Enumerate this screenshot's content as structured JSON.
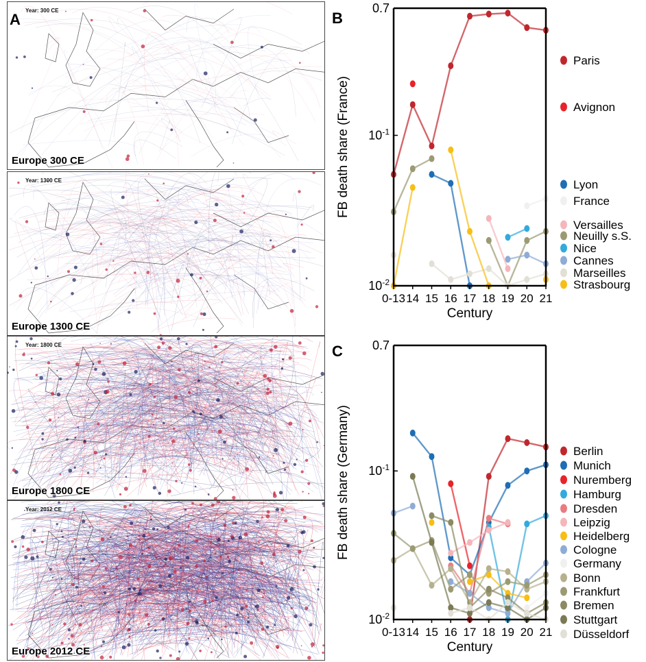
{
  "panel_letters": {
    "a": "A",
    "b": "B",
    "c": "C"
  },
  "maps": [
    {
      "year_label": "Year: 300 CE",
      "caption": "Europe 300 CE",
      "density": 0.05
    },
    {
      "year_label": "Year: 1300 CE",
      "caption": "Europe 1300 CE",
      "density": 0.2
    },
    {
      "year_label": "Year: 1800 CE",
      "caption": "Europe 1800 CE",
      "density": 0.65
    },
    {
      "year_label": "Year: 2012 CE",
      "caption": "Europe 2012 CE",
      "density": 1.0
    }
  ],
  "chart_data": [
    {
      "type": "line",
      "ylabel": "FB death share (France)",
      "xlabel": "Century",
      "categories": [
        "0-13",
        "14",
        "15",
        "16",
        "17",
        "18",
        "19",
        "20",
        "21"
      ],
      "y_scale": "log",
      "ylim": [
        0.01,
        0.7
      ],
      "y_ticks": [
        {
          "value": 0.7,
          "label": "0.7"
        },
        {
          "value": 0.1,
          "label": "10-1"
        },
        {
          "value": 0.01,
          "label": "10-2"
        }
      ],
      "legend_position": "right",
      "series": [
        {
          "name": "Paris",
          "color": "#c0272d",
          "values": [
            0.055,
            0.16,
            0.085,
            0.29,
            0.62,
            0.64,
            0.65,
            0.52,
            0.5
          ]
        },
        {
          "name": "Avignon",
          "color": "#e8232a",
          "values": [
            null,
            0.22,
            null,
            null,
            null,
            null,
            null,
            null,
            null
          ]
        },
        {
          "name": "Lyon",
          "color": "#1f6db4",
          "values": [
            null,
            null,
            0.055,
            0.048,
            0.01,
            null,
            null,
            null,
            null
          ]
        },
        {
          "name": "France",
          "color": "#f0f0f0",
          "values": [
            null,
            null,
            null,
            null,
            null,
            null,
            null,
            0.034,
            0.038
          ]
        },
        {
          "name": "Versailles",
          "color": "#f4b6bb",
          "values": [
            null,
            null,
            null,
            null,
            null,
            0.028,
            0.013,
            null,
            null
          ]
        },
        {
          "name": "Neuilly s.S.",
          "color": "#9b9a73",
          "values": [
            0.031,
            0.06,
            0.07,
            null,
            null,
            0.02,
            0.01,
            0.02,
            0.023
          ]
        },
        {
          "name": "Nice",
          "color": "#33aadc",
          "values": [
            null,
            null,
            null,
            null,
            null,
            null,
            0.021,
            0.024,
            null
          ]
        },
        {
          "name": "Cannes",
          "color": "#8eacd6",
          "values": [
            null,
            null,
            null,
            null,
            null,
            null,
            0.015,
            0.016,
            0.014
          ]
        },
        {
          "name": "Marseilles",
          "color": "#e2e0d6",
          "values": [
            0.016,
            null,
            0.014,
            0.011,
            0.012,
            0.013,
            0.01,
            0.011,
            0.012
          ]
        },
        {
          "name": "Strasbourg",
          "color": "#f7be16",
          "values": [
            0.01,
            0.045,
            null,
            0.08,
            0.023,
            0.01,
            null,
            null,
            0.011
          ]
        }
      ]
    },
    {
      "type": "line",
      "ylabel": "FB death share (Germany)",
      "xlabel": "Century",
      "categories": [
        "0-13",
        "14",
        "15",
        "16",
        "17",
        "18",
        "19",
        "20",
        "21"
      ],
      "y_scale": "log",
      "ylim": [
        0.01,
        0.7
      ],
      "y_ticks": [
        {
          "value": 0.7,
          "label": "0.7"
        },
        {
          "value": 0.1,
          "label": "10-1"
        },
        {
          "value": 0.01,
          "label": "10-2"
        }
      ],
      "legend_position": "right",
      "series": [
        {
          "name": "Berlin",
          "color": "#c0272d",
          "values": [
            null,
            null,
            null,
            null,
            0.01,
            0.092,
            0.165,
            0.155,
            0.145
          ]
        },
        {
          "name": "Munich",
          "color": "#1f6db4",
          "values": [
            null,
            0.18,
            0.125,
            0.026,
            0.02,
            0.045,
            0.08,
            0.1,
            0.11
          ]
        },
        {
          "name": "Nuremberg",
          "color": "#e8232a",
          "values": [
            null,
            null,
            null,
            0.082,
            0.023,
            null,
            null,
            null,
            null
          ]
        },
        {
          "name": "Hamburg",
          "color": "#33aadc",
          "values": [
            null,
            null,
            null,
            null,
            null,
            0.042,
            0.01,
            0.044,
            0.05
          ]
        },
        {
          "name": "Dresden",
          "color": "#e87c80",
          "values": [
            null,
            null,
            null,
            0.023,
            0.015,
            0.048,
            0.044,
            null,
            null
          ]
        },
        {
          "name": "Leipzig",
          "color": "#f4b6bb",
          "values": [
            null,
            null,
            null,
            0.028,
            0.033,
            0.04,
            0.045,
            null,
            null
          ]
        },
        {
          "name": "Heidelberg",
          "color": "#f7be16",
          "values": [
            null,
            null,
            0.045,
            null,
            0.018,
            0.02,
            0.015,
            0.014,
            null
          ]
        },
        {
          "name": "Cologne",
          "color": "#8eacd6",
          "values": [
            0.052,
            0.058,
            null,
            0.018,
            0.015,
            0.012,
            0.011,
            0.018,
            0.024
          ]
        },
        {
          "name": "Germany",
          "color": "#f0f0f0",
          "values": [
            null,
            null,
            null,
            null,
            null,
            null,
            null,
            0.012,
            0.015
          ]
        },
        {
          "name": "Bonn",
          "color": "#b5b08e",
          "values": [
            0.025,
            0.03,
            0.017,
            0.022,
            0.013,
            0.022,
            0.021,
            0.016,
            0.018
          ]
        },
        {
          "name": "Frankfurt",
          "color": "#9b9a73",
          "values": [
            0.038,
            0.03,
            0.034,
            0.016,
            0.02,
            0.015,
            0.018,
            0.017,
            0.02
          ]
        },
        {
          "name": "Bremen",
          "color": "#8b8a63",
          "values": [
            null,
            null,
            0.05,
            0.045,
            0.012,
            0.016,
            0.014,
            0.011,
            0.013
          ]
        },
        {
          "name": "Stuttgart",
          "color": "#7b7a55",
          "values": [
            null,
            0.092,
            0.033,
            0.012,
            0.011,
            0.013,
            0.012,
            0.01,
            0.012
          ]
        },
        {
          "name": "Düsseldorf",
          "color": "#e2e0d6",
          "values": [
            0.012,
            null,
            null,
            0.011,
            0.012,
            0.01,
            0.013,
            0.011,
            0.01
          ]
        }
      ]
    }
  ]
}
